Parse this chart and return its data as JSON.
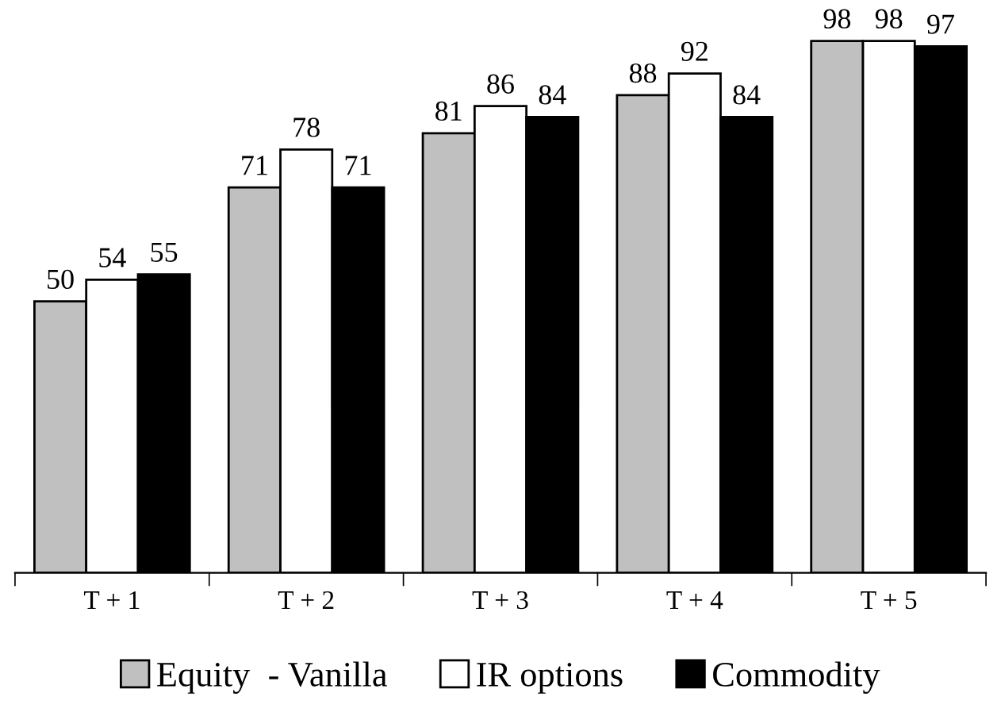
{
  "chart_data": {
    "type": "bar",
    "categories": [
      "T + 1",
      "T + 2",
      "T + 3",
      "T + 4",
      "T + 5"
    ],
    "series": [
      {
        "name": "Equity  - Vanilla",
        "color": "#c0c0c0",
        "values": [
          50,
          71,
          81,
          88,
          98
        ]
      },
      {
        "name": "IR options",
        "color": "#ffffff",
        "values": [
          54,
          78,
          86,
          92,
          98
        ]
      },
      {
        "name": "Commodity",
        "color": "#000000",
        "values": [
          55,
          71,
          84,
          84,
          97
        ]
      }
    ],
    "data_labels": true,
    "grid": false,
    "legend": "bottom",
    "tick_labels": "x"
  }
}
